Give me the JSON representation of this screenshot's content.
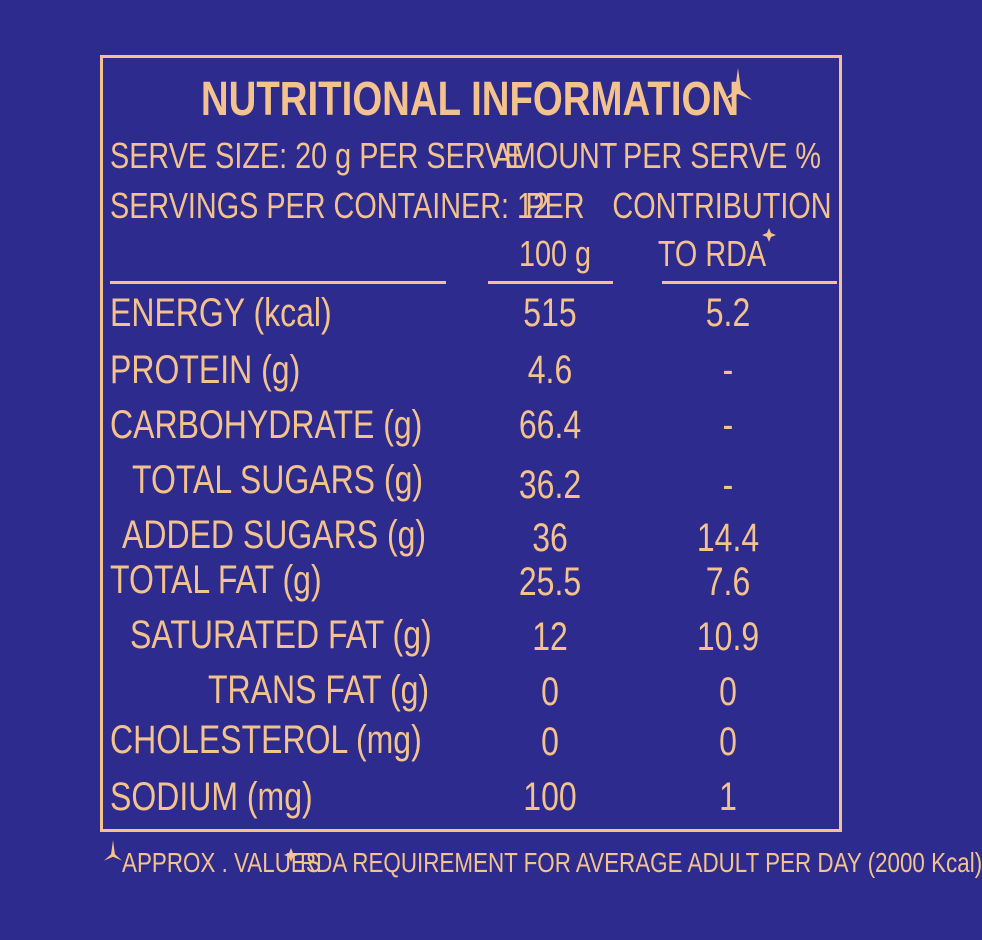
{
  "title": "NUTRITIONAL INFORMATION",
  "serve_info": [
    "SERVE SIZE: 20 g PER SERVE",
    "SERVINGS PER CONTAINER: 12"
  ],
  "columns": [
    [
      "AMOUNT",
      "PER",
      "100 g"
    ],
    [
      "PER SERVE %",
      "CONTRIBUTION",
      "TO RDA"
    ]
  ],
  "rows": [
    [
      "ENERGY (kcal)",
      "515",
      "5.2"
    ],
    [
      "PROTEIN (g)",
      "4.6",
      "-"
    ],
    [
      "CARBOHYDRATE (g)",
      "66.4",
      "-"
    ],
    [
      "TOTAL SUGARS (g)",
      "36.2",
      "-"
    ],
    [
      "ADDED SUGARS (g)",
      "36",
      "14.4"
    ],
    [
      "TOTAL FAT (g)",
      "25.5",
      "7.6"
    ],
    [
      "SATURATED FAT (g)",
      "12",
      "10.9"
    ],
    [
      "TRANS FAT (g)",
      "0",
      "0"
    ],
    [
      "CHOLESTEROL (mg)",
      "0",
      "0"
    ],
    [
      "SODIUM (mg)",
      "100",
      "1"
    ]
  ],
  "footnotes": [
    "APPROX . VALUES",
    "RDA REQUIREMENT FOR AVERAGE ADULT PER DAY (2000 Kcal)"
  ]
}
